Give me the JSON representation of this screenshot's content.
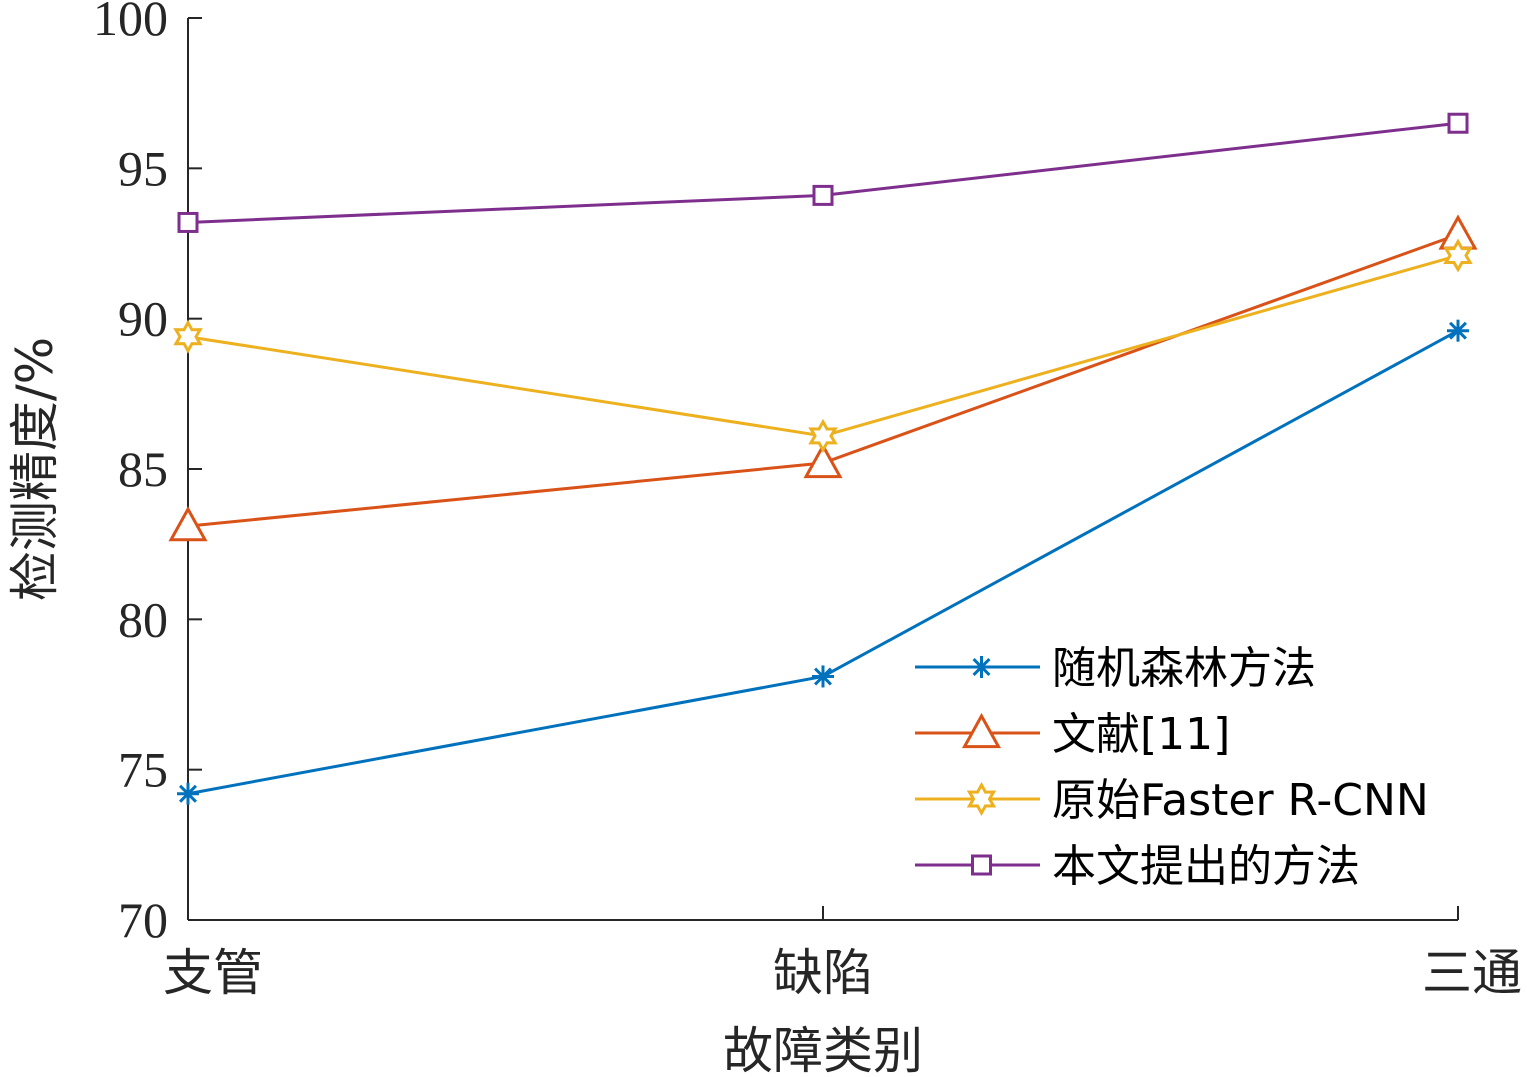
{
  "chart_data": {
    "type": "line",
    "categories": [
      "支管",
      "缺陷",
      "三通"
    ],
    "xlabel": "故障类别",
    "ylabel": "检测精度/%",
    "ylim": [
      70,
      100
    ],
    "yticks": [
      70,
      75,
      80,
      85,
      90,
      95,
      100
    ],
    "grid": false,
    "legend_position": "bottom-right",
    "series": [
      {
        "name": "随机森林方法",
        "values": [
          74.2,
          78.1,
          89.6
        ],
        "color": "#0072BD",
        "marker": "asterisk"
      },
      {
        "name": "文献[11]",
        "values": [
          83.1,
          85.2,
          92.8
        ],
        "color": "#D95319",
        "marker": "triangle"
      },
      {
        "name": "原始Faster R-CNN",
        "values": [
          89.4,
          86.1,
          92.1
        ],
        "color": "#EDB120",
        "marker": "hexagram"
      },
      {
        "name": "本文提出的方法",
        "values": [
          93.2,
          94.1,
          96.5
        ],
        "color": "#7E2F8E",
        "marker": "square"
      }
    ]
  }
}
